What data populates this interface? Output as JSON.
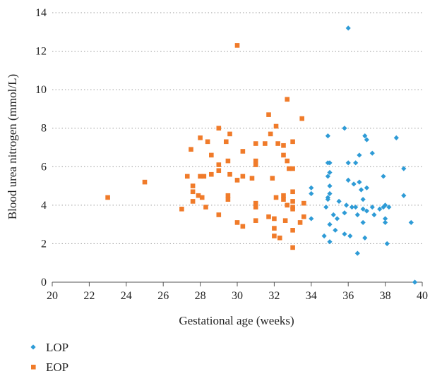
{
  "chart_data": {
    "type": "scatter",
    "title": "",
    "xlabel": "Gestational age (weeks)",
    "ylabel": "Blood urea nitrogen (mmol/L)",
    "xlim": [
      20,
      40
    ],
    "ylim": [
      0,
      14
    ],
    "xticks": [
      "20",
      "22",
      "24",
      "26",
      "28",
      "30",
      "32",
      "34",
      "36",
      "38",
      "40"
    ],
    "yticks": [
      "0",
      "2",
      "4",
      "6",
      "8",
      "10",
      "12",
      "14"
    ],
    "grid": "horizontal dotted",
    "legend_position": "bottom-left",
    "series": [
      {
        "name": "LOP",
        "color": "#2E9BD6",
        "marker": "diamond",
        "points": [
          [
            34.0,
            4.9
          ],
          [
            34.0,
            4.6
          ],
          [
            34.0,
            3.3
          ],
          [
            34.7,
            2.4
          ],
          [
            34.8,
            3.9
          ],
          [
            34.9,
            7.6
          ],
          [
            34.9,
            6.2
          ],
          [
            34.9,
            5.5
          ],
          [
            34.9,
            4.4
          ],
          [
            34.9,
            4.3
          ],
          [
            35.0,
            6.2
          ],
          [
            35.0,
            5.7
          ],
          [
            35.0,
            5.0
          ],
          [
            35.0,
            4.6
          ],
          [
            35.0,
            3.0
          ],
          [
            35.0,
            2.1
          ],
          [
            35.2,
            3.5
          ],
          [
            35.3,
            2.7
          ],
          [
            35.4,
            3.3
          ],
          [
            35.5,
            4.2
          ],
          [
            35.8,
            8.0
          ],
          [
            35.8,
            3.6
          ],
          [
            35.8,
            2.5
          ],
          [
            35.9,
            4.0
          ],
          [
            36.0,
            13.2
          ],
          [
            36.0,
            6.2
          ],
          [
            36.0,
            5.3
          ],
          [
            36.1,
            2.4
          ],
          [
            36.2,
            3.9
          ],
          [
            36.3,
            5.1
          ],
          [
            36.4,
            3.9
          ],
          [
            36.4,
            6.2
          ],
          [
            36.5,
            3.5
          ],
          [
            36.5,
            1.5
          ],
          [
            36.6,
            6.6
          ],
          [
            36.6,
            5.2
          ],
          [
            36.7,
            4.8
          ],
          [
            36.8,
            4.3
          ],
          [
            36.8,
            3.8
          ],
          [
            36.8,
            3.1
          ],
          [
            36.9,
            7.6
          ],
          [
            36.9,
            2.3
          ],
          [
            37.0,
            7.4
          ],
          [
            37.0,
            4.9
          ],
          [
            37.0,
            3.7
          ],
          [
            37.3,
            6.7
          ],
          [
            37.3,
            3.9
          ],
          [
            37.4,
            3.5
          ],
          [
            37.7,
            3.8
          ],
          [
            37.9,
            5.5
          ],
          [
            37.9,
            3.9
          ],
          [
            38.0,
            4.0
          ],
          [
            38.0,
            3.3
          ],
          [
            38.0,
            3.1
          ],
          [
            38.1,
            2.0
          ],
          [
            38.2,
            3.9
          ],
          [
            38.6,
            7.5
          ],
          [
            39.0,
            5.9
          ],
          [
            39.0,
            4.5
          ],
          [
            39.4,
            3.1
          ],
          [
            39.6,
            0.0
          ]
        ]
      },
      {
        "name": "EOP",
        "color": "#F07B2A",
        "marker": "square",
        "points": [
          [
            23.0,
            4.4
          ],
          [
            25.0,
            5.2
          ],
          [
            27.0,
            3.8
          ],
          [
            27.3,
            5.5
          ],
          [
            27.5,
            6.9
          ],
          [
            27.6,
            5.0
          ],
          [
            27.6,
            4.7
          ],
          [
            27.6,
            4.2
          ],
          [
            27.9,
            4.5
          ],
          [
            28.0,
            7.5
          ],
          [
            28.0,
            5.5
          ],
          [
            28.1,
            4.4
          ],
          [
            28.2,
            5.5
          ],
          [
            28.3,
            3.9
          ],
          [
            28.4,
            7.3
          ],
          [
            28.6,
            5.6
          ],
          [
            28.6,
            6.6
          ],
          [
            29.0,
            8.0
          ],
          [
            29.0,
            6.1
          ],
          [
            29.0,
            5.8
          ],
          [
            29.0,
            3.5
          ],
          [
            29.4,
            7.3
          ],
          [
            29.5,
            6.3
          ],
          [
            29.5,
            4.5
          ],
          [
            29.5,
            4.3
          ],
          [
            29.6,
            7.7
          ],
          [
            29.6,
            5.6
          ],
          [
            30.0,
            12.3
          ],
          [
            30.0,
            5.3
          ],
          [
            30.0,
            3.1
          ],
          [
            30.3,
            6.8
          ],
          [
            30.3,
            5.5
          ],
          [
            30.3,
            2.9
          ],
          [
            30.8,
            5.4
          ],
          [
            31.0,
            7.2
          ],
          [
            31.0,
            6.3
          ],
          [
            31.0,
            6.1
          ],
          [
            31.0,
            4.1
          ],
          [
            31.0,
            3.9
          ],
          [
            31.0,
            3.2
          ],
          [
            31.5,
            7.2
          ],
          [
            31.7,
            8.7
          ],
          [
            31.7,
            3.4
          ],
          [
            31.8,
            7.7
          ],
          [
            31.9,
            5.4
          ],
          [
            32.0,
            3.3
          ],
          [
            32.0,
            2.8
          ],
          [
            32.0,
            2.4
          ],
          [
            32.1,
            8.1
          ],
          [
            32.1,
            4.4
          ],
          [
            32.2,
            7.2
          ],
          [
            32.3,
            2.3
          ],
          [
            32.5,
            7.1
          ],
          [
            32.5,
            6.6
          ],
          [
            32.5,
            4.5
          ],
          [
            32.5,
            4.3
          ],
          [
            32.6,
            3.2
          ],
          [
            32.7,
            9.5
          ],
          [
            32.7,
            6.3
          ],
          [
            32.7,
            4.0
          ],
          [
            32.8,
            5.9
          ],
          [
            33.0,
            7.3
          ],
          [
            33.0,
            5.9
          ],
          [
            33.0,
            4.7
          ],
          [
            33.0,
            4.2
          ],
          [
            33.0,
            3.9
          ],
          [
            33.0,
            3.8
          ],
          [
            33.0,
            2.7
          ],
          [
            33.0,
            1.8
          ],
          [
            33.4,
            3.1
          ],
          [
            33.5,
            8.5
          ],
          [
            33.6,
            4.1
          ],
          [
            33.6,
            3.4
          ]
        ]
      }
    ]
  }
}
